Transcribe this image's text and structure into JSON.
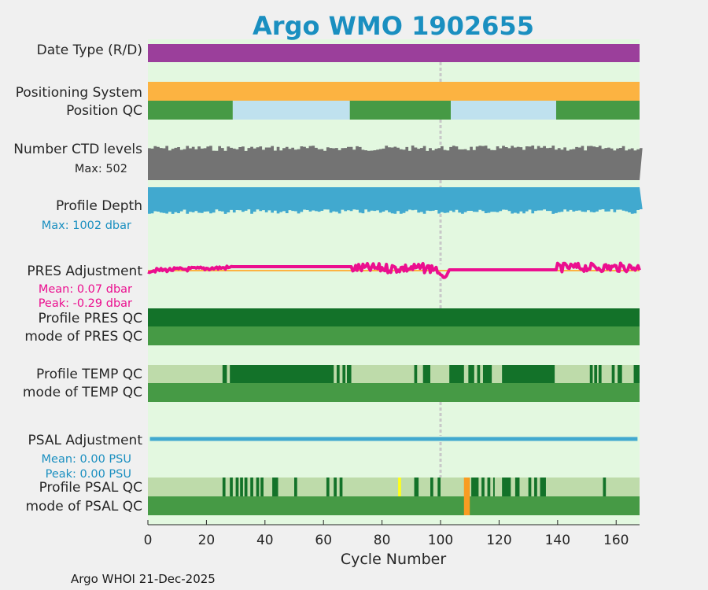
{
  "title": "Argo WMO 1902655",
  "footer": "Argo WHOI 21-Dec-2025",
  "colors": {
    "title": "#1a8fc0",
    "plot_bg": "#e3f8e0",
    "date_type": "#9b3f9b",
    "positioning": "#fcb341",
    "qc_good": "#469a45",
    "qc_dark": "#137229",
    "qc_light": "#bedbaa",
    "pos_alt": "#bfe1ee",
    "ctd_gray": "#737373",
    "profile_depth": "#41a9cf",
    "pres_adj": "#eb0f8f",
    "pres_adj_base": "#fcb341",
    "psal_adj": "#41a9cf",
    "flag_yellow": "#ffff1a",
    "flag_orange": "#f99c22",
    "ref_line": "#c8c8c8",
    "text": "#262626",
    "blue_text": "#1a8fc0",
    "pink_text": "#eb0f8f"
  },
  "rows": {
    "date_type": "Date Type (R/D)",
    "positioning": "Positioning System",
    "position_qc": "Position QC",
    "ctd_levels": "Number CTD levels",
    "ctd_max": "Max: 502",
    "profile_depth": "Profile Depth",
    "depth_max": "Max: 1002 dbar",
    "pres_adj": "PRES Adjustment",
    "pres_mean": "Mean: 0.07 dbar",
    "pres_peak": "Peak: -0.29 dbar",
    "profile_pres_qc": "Profile PRES QC",
    "mode_pres_qc": "mode of PRES QC",
    "profile_temp_qc": "Profile TEMP QC",
    "mode_temp_qc": "mode of TEMP QC",
    "psal_adj": "PSAL Adjustment",
    "psal_mean": "Mean: 0.00 PSU",
    "psal_peak": "Peak: 0.00 PSU",
    "profile_psal_qc": "Profile PSAL QC",
    "mode_psal_qc": "mode of PSAL QC"
  },
  "chart_data": {
    "type": "bar",
    "title": "Argo WMO 1902655",
    "xlabel": "Cycle Number",
    "xlim": [
      0,
      168
    ],
    "xticks": [
      0,
      20,
      40,
      60,
      80,
      100,
      120,
      140,
      160
    ],
    "reference_cycle": 100,
    "position_qc_segments": [
      {
        "from": 0,
        "to": 29,
        "status": "good"
      },
      {
        "from": 29,
        "to": 69,
        "status": "light"
      },
      {
        "from": 69,
        "to": 103.5,
        "status": "good"
      },
      {
        "from": 103.5,
        "to": 139.5,
        "status": "light"
      },
      {
        "from": 139.5,
        "to": 168,
        "status": "good"
      }
    ],
    "temp_qc_dark_segments": [
      [
        25.5,
        27
      ],
      [
        28,
        63.5
      ],
      [
        64.5,
        65.5
      ],
      [
        66.5,
        67.5
      ],
      [
        68,
        69.5
      ],
      [
        91,
        92
      ],
      [
        94,
        96.5
      ],
      [
        103,
        108
      ],
      [
        109.5,
        111.5
      ],
      [
        112.5,
        113.5
      ],
      [
        114.5,
        117.5
      ],
      [
        121,
        139
      ],
      [
        151,
        152
      ],
      [
        152.5,
        153.5
      ],
      [
        154,
        155
      ],
      [
        158.5,
        159.5
      ],
      [
        160.5,
        162
      ],
      [
        166,
        168
      ]
    ],
    "psal_qc_dark_segments": [
      [
        25.5,
        26.5
      ],
      [
        28,
        29
      ],
      [
        30,
        31
      ],
      [
        31.5,
        32.5
      ],
      [
        33,
        34
      ],
      [
        35,
        36
      ],
      [
        37,
        38
      ],
      [
        38.5,
        39.5
      ],
      [
        42.5,
        44.5
      ],
      [
        50,
        51
      ],
      [
        61,
        62
      ],
      [
        63.5,
        64.5
      ],
      [
        65.5,
        66.5
      ],
      [
        91,
        92.5
      ],
      [
        96.5,
        97.5
      ],
      [
        99,
        100
      ],
      [
        110.5,
        113
      ],
      [
        114,
        115
      ],
      [
        116,
        117
      ],
      [
        118,
        118.5
      ],
      [
        121,
        124
      ],
      [
        125.5,
        127
      ],
      [
        130,
        131
      ],
      [
        132,
        133
      ],
      [
        134,
        136
      ],
      [
        155.5,
        156.5
      ]
    ],
    "psal_qc_yellow": [
      [
        85.5,
        86.5
      ]
    ],
    "psal_qc_orange": [
      [
        108,
        110
      ]
    ],
    "mode_psal_orange": [
      [
        108,
        110
      ]
    ],
    "ctd_levels_max": 502,
    "profile_depth_max": 1002,
    "pres_adjustment_mean": 0.07,
    "pres_adjustment_peak": -0.29,
    "psal_adjustment_mean": 0.0,
    "psal_adjustment_peak": 0.0
  }
}
